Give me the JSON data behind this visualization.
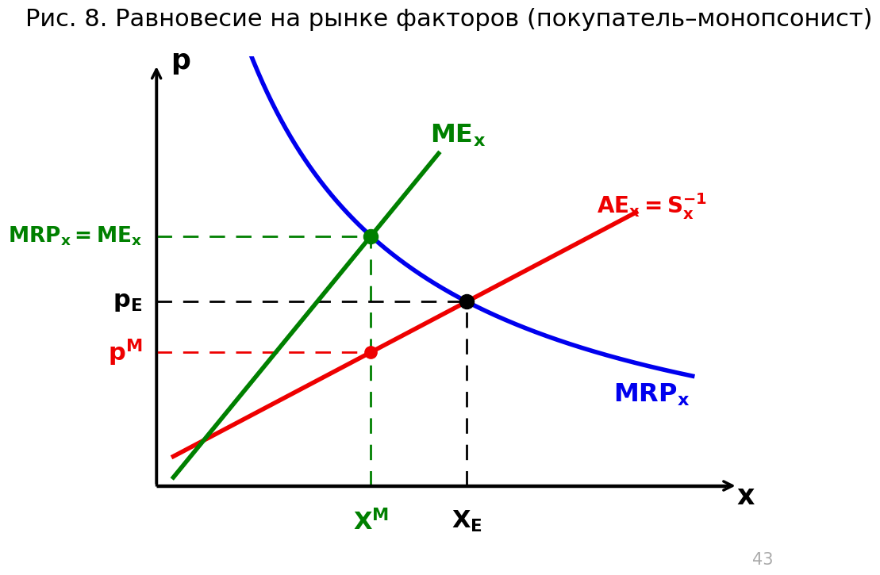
{
  "title": "Рис. 8. Равновесие на рынке факторов (покупатель–монопсонист)",
  "title_fontsize": 22,
  "title_color": "#000000",
  "bg_color": "#ffffff",
  "axis_color": "#000000",
  "MRP_color": "#0000ee",
  "ME_color": "#008000",
  "AE_color": "#ee0000",
  "dashed_green": "#008000",
  "dashed_black": "#000000",
  "dashed_red": "#ee0000",
  "dot_green_color": "#008000",
  "dot_black_color": "#000000",
  "dot_red_color": "#ee0000",
  "page_number": "43",
  "xM": 3.8,
  "xE": 5.5
}
